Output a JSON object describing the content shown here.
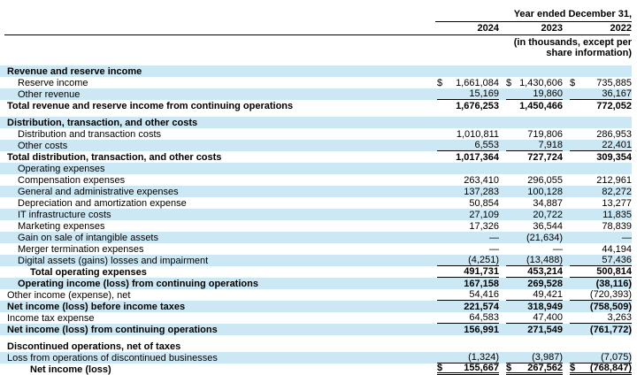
{
  "header": {
    "period_label": "Year ended December 31,",
    "columns": [
      "2024",
      "2023",
      "2022"
    ],
    "units_note_line1": "(in thousands, except per",
    "units_note_line2": "share information)"
  },
  "colors": {
    "row_highlight": "#cde8f5",
    "text": "#000000",
    "rule": "#000000"
  },
  "rows": [
    {
      "label": "Revenue and reserve income",
      "bold": true,
      "blue": true,
      "indent": 0,
      "values": [
        "",
        "",
        ""
      ]
    },
    {
      "label": "Reserve income",
      "bold": false,
      "blue": false,
      "indent": 1,
      "dollar": true,
      "values": [
        "1,661,084",
        "1,430,606",
        "735,885"
      ]
    },
    {
      "label": "Other revenue",
      "bold": false,
      "blue": true,
      "indent": 1,
      "rule": true,
      "values": [
        "15,169",
        "19,860",
        "36,167"
      ]
    },
    {
      "label": "Total revenue and reserve income from continuing operations",
      "bold": true,
      "blue": false,
      "indent": 0,
      "values": [
        "1,676,253",
        "1,450,466",
        "772,052"
      ]
    },
    {
      "label": "Distribution, transaction, and other costs",
      "bold": true,
      "blue": true,
      "indent": 0,
      "gap": true,
      "values": [
        "",
        "",
        ""
      ]
    },
    {
      "label": "Distribution and transaction costs",
      "bold": false,
      "blue": false,
      "indent": 1,
      "values": [
        "1,010,811",
        "719,806",
        "286,953"
      ]
    },
    {
      "label": "Other costs",
      "bold": false,
      "blue": true,
      "indent": 1,
      "rule": true,
      "values": [
        "6,553",
        "7,918",
        "22,401"
      ]
    },
    {
      "label": "Total distribution, transaction, and other costs",
      "bold": true,
      "blue": false,
      "indent": 0,
      "values": [
        "1,017,364",
        "727,724",
        "309,354"
      ]
    },
    {
      "label": "Operating expenses",
      "bold": false,
      "blue": true,
      "indent": 1,
      "values": [
        "",
        "",
        ""
      ]
    },
    {
      "label": "Compensation expenses",
      "bold": false,
      "blue": false,
      "indent": 1,
      "values": [
        "263,410",
        "296,055",
        "212,961"
      ]
    },
    {
      "label": "General and administrative expenses",
      "bold": false,
      "blue": true,
      "indent": 1,
      "values": [
        "137,283",
        "100,128",
        "82,272"
      ]
    },
    {
      "label": "Depreciation and amortization expense",
      "bold": false,
      "blue": false,
      "indent": 1,
      "values": [
        "50,854",
        "34,887",
        "13,277"
      ]
    },
    {
      "label": "IT infrastructure costs",
      "bold": false,
      "blue": true,
      "indent": 1,
      "values": [
        "27,109",
        "20,722",
        "11,835"
      ]
    },
    {
      "label": "Marketing expenses",
      "bold": false,
      "blue": false,
      "indent": 1,
      "values": [
        "17,326",
        "36,544",
        "78,839"
      ]
    },
    {
      "label": "Gain on sale of intangible assets",
      "bold": false,
      "blue": true,
      "indent": 1,
      "values": [
        "—",
        "(21,634)",
        "—"
      ]
    },
    {
      "label": "Merger termination expenses",
      "bold": false,
      "blue": false,
      "indent": 1,
      "values": [
        "—",
        "—",
        "44,194"
      ]
    },
    {
      "label": "Digital assets (gains) losses and impairment",
      "bold": false,
      "blue": true,
      "indent": 1,
      "rule": true,
      "values": [
        "(4,251)",
        "(13,488)",
        "57,436"
      ]
    },
    {
      "label": "Total operating expenses",
      "bold": true,
      "blue": false,
      "indent": 2,
      "rule": true,
      "values": [
        "491,731",
        "453,214",
        "500,814"
      ]
    },
    {
      "label": "Operating income (loss) from continuing operations",
      "bold": true,
      "blue": true,
      "indent": 1,
      "values": [
        "167,158",
        "269,528",
        "(38,116)"
      ]
    },
    {
      "label": "Other income (expense), net",
      "bold": false,
      "blue": false,
      "indent": 0,
      "rule": true,
      "values": [
        "54,416",
        "49,421",
        "(720,393)"
      ]
    },
    {
      "label": "Net income (loss) before income taxes",
      "bold": true,
      "blue": true,
      "indent": 0,
      "values": [
        "221,574",
        "318,949",
        "(758,509)"
      ]
    },
    {
      "label": "Income tax expense",
      "bold": false,
      "blue": false,
      "indent": 0,
      "rule": true,
      "values": [
        "64,583",
        "47,400",
        "3,263"
      ]
    },
    {
      "label": "Net income (loss) from continuing operations",
      "bold": true,
      "blue": true,
      "indent": 0,
      "values": [
        "156,991",
        "271,549",
        "(761,772)"
      ]
    },
    {
      "label": "Discontinued operations, net of taxes",
      "bold": true,
      "blue": false,
      "indent": 0,
      "gap": true,
      "values": [
        "",
        "",
        ""
      ]
    },
    {
      "label": "Loss from operations of discontinued businesses",
      "bold": false,
      "blue": true,
      "indent": 0,
      "rule": true,
      "values": [
        "(1,324)",
        "(3,987)",
        "(7,075)"
      ]
    },
    {
      "label": "Net income (loss)",
      "bold": true,
      "blue": false,
      "indent": 2,
      "dollar": true,
      "dbl": true,
      "values": [
        "155,667",
        "267,562",
        "(768,847)"
      ]
    }
  ]
}
